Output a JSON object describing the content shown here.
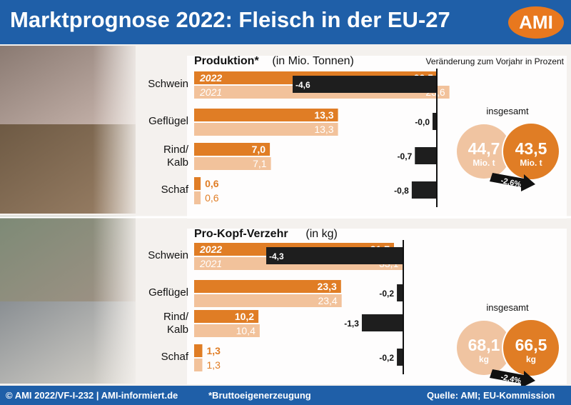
{
  "header": {
    "title": "Marktprognose 2022: Fleisch in der EU-27",
    "logo_text": "AMI"
  },
  "footer": {
    "copyright": "© AMI 2022/VF-I-232 | AMI-informiert.de",
    "note": "*Bruttoeigenerzeugung",
    "source": "Quelle: AMI; EU-Kommission"
  },
  "colors": {
    "header_blue": "#1f5fa8",
    "bar_2022": "#e07d25",
    "bar_2021": "#f2c29b",
    "change_bar": "#1e1e1e",
    "bubble_2021": "#f0c4a1",
    "bubble_2022": "#e07d25"
  },
  "photos": [
    "pigs-photo",
    "chickens-photo",
    "cattle-photo",
    "sheep-goats-photo"
  ],
  "chart_data": [
    {
      "type": "bar",
      "title": "Produktion*",
      "unit": "(in Mio. Tonnen)",
      "change_title": "Veränderung zum Vorjahr in Prozent",
      "categories": [
        "Schwein",
        "Geflügel",
        "Rind/\nKalb",
        "Schaf"
      ],
      "series": [
        {
          "name": "2022",
          "values": [
            22.5,
            13.3,
            7.0,
            0.6
          ],
          "labels": [
            "22,5",
            "13,3",
            "7,0",
            "0,6"
          ]
        },
        {
          "name": "2021",
          "values": [
            23.6,
            13.3,
            7.1,
            0.6
          ],
          "labels": [
            "23,6",
            "13,3",
            "7,1",
            "0,6"
          ]
        }
      ],
      "change_percent": {
        "values": [
          -4.6,
          -0.0,
          -0.7,
          -0.8
        ],
        "labels": [
          "-4,6",
          "-0,0",
          "-0,7",
          "-0,8"
        ]
      },
      "total": {
        "label": "insgesamt",
        "value_2021": "44,7",
        "value_2022": "43,5",
        "unit": "Mio. t",
        "change": "-2,6%"
      }
    },
    {
      "type": "bar",
      "title": "Pro-Kopf-Verzehr",
      "unit": "(in kg)",
      "categories": [
        "Schwein",
        "Geflügel",
        "Rind/\nKalb",
        "Schaf"
      ],
      "series": [
        {
          "name": "2022",
          "values": [
            31.7,
            23.3,
            10.2,
            1.3
          ],
          "labels": [
            "31,7",
            "23,3",
            "10,2",
            "1,3"
          ]
        },
        {
          "name": "2021",
          "values": [
            33.1,
            23.4,
            10.4,
            1.3
          ],
          "labels": [
            "33,1",
            "23,4",
            "10,4",
            "1,3"
          ]
        }
      ],
      "change_percent": {
        "values": [
          -4.3,
          -0.2,
          -1.3,
          -0.2
        ],
        "labels": [
          "-4,3",
          "-0,2",
          "-1,3",
          "-0,2"
        ]
      },
      "total": {
        "label": "insgesamt",
        "value_2021": "68,1",
        "value_2022": "66,5",
        "unit": "kg",
        "change": "-2,4%"
      }
    }
  ]
}
